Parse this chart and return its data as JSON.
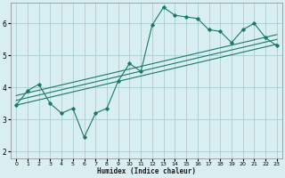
{
  "title": "",
  "xlabel": "Humidex (Indice chaleur)",
  "background_color": "#d8eef0",
  "grid_color": "#aacdd4",
  "line_color": "#1a7a6a",
  "xlim": [
    -0.5,
    23.5
  ],
  "ylim": [
    1.8,
    6.65
  ],
  "xticks": [
    0,
    1,
    2,
    3,
    4,
    5,
    6,
    7,
    8,
    9,
    10,
    11,
    12,
    13,
    14,
    15,
    16,
    17,
    18,
    19,
    20,
    21,
    22,
    23
  ],
  "yticks": [
    2,
    3,
    4,
    5,
    6
  ],
  "main_line_x": [
    0,
    1,
    2,
    3,
    4,
    5,
    6,
    7,
    8,
    9,
    10,
    11,
    12,
    13,
    14,
    15,
    16,
    17,
    18,
    19,
    20,
    21,
    22,
    23
  ],
  "main_line_y": [
    3.45,
    3.9,
    4.1,
    3.5,
    3.2,
    3.35,
    2.45,
    3.2,
    3.35,
    4.2,
    4.75,
    4.5,
    5.95,
    6.5,
    6.25,
    6.2,
    6.15,
    5.8,
    5.75,
    5.4,
    5.8,
    6.0,
    5.55,
    5.3
  ],
  "trend_line1_x": [
    0,
    23
  ],
  "trend_line1_y": [
    3.45,
    5.35
  ],
  "trend_line2_x": [
    0,
    23
  ],
  "trend_line2_y": [
    3.6,
    5.5
  ],
  "trend_line3_x": [
    0,
    23
  ],
  "trend_line3_y": [
    3.75,
    5.65
  ]
}
